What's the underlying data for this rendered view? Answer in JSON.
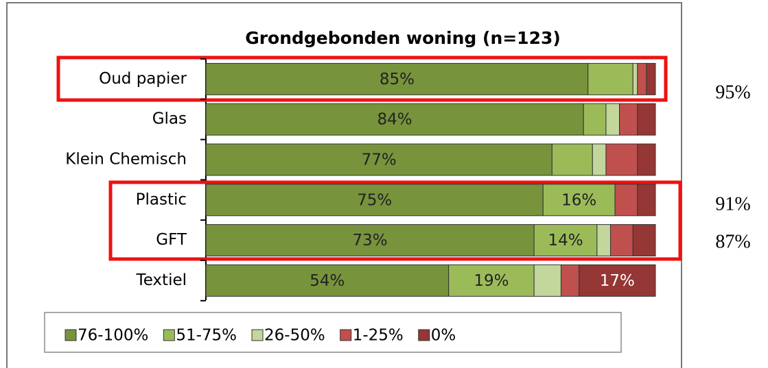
{
  "chart_data": {
    "type": "stacked_barh",
    "title": "Grondgebonden woning (n=123)",
    "categories": [
      "Oud papier",
      "Glas",
      "Klein Chemisch",
      "Plastic",
      "GFT",
      "Textiel"
    ],
    "xlim": [
      0,
      100
    ],
    "series": [
      {
        "name": "76-100%",
        "color": "#77933c",
        "values": [
          85,
          84,
          77,
          75,
          73,
          54
        ],
        "value_labels": [
          "85%",
          "84%",
          "77%",
          "75%",
          "73%",
          "54%"
        ]
      },
      {
        "name": "51-75%",
        "color": "#9bbb59",
        "values": [
          10,
          5,
          9,
          16,
          14,
          19
        ],
        "value_labels": [
          null,
          null,
          null,
          "16%",
          "14%",
          "19%"
        ]
      },
      {
        "name": "26-50%",
        "color": "#c3d69b",
        "values": [
          1,
          3,
          3,
          0,
          3,
          6
        ],
        "value_labels": [
          null,
          null,
          null,
          null,
          null,
          null
        ]
      },
      {
        "name": "1-25%",
        "color": "#c0504d",
        "values": [
          2,
          4,
          7,
          5,
          5,
          4
        ],
        "value_labels": [
          null,
          null,
          null,
          null,
          null,
          null
        ]
      },
      {
        "name": "0%",
        "color": "#953735",
        "values": [
          2,
          4,
          4,
          4,
          5,
          17
        ],
        "value_labels": [
          null,
          null,
          null,
          null,
          null,
          "17%"
        ]
      }
    ],
    "legend": "bottom",
    "annotations": [
      {
        "text": "95%"
      },
      {
        "text": "91%"
      },
      {
        "text": "87%"
      }
    ]
  }
}
